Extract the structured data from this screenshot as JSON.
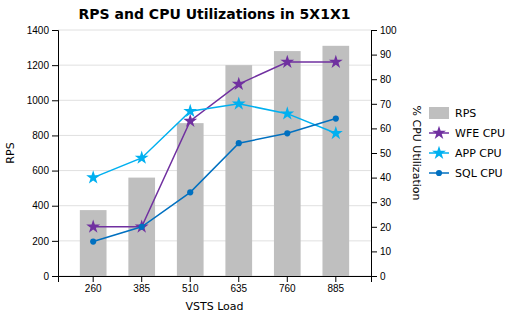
{
  "chart_data": {
    "type": "bar",
    "title": "RPS and CPU Utilizations in 5X1X1",
    "xlabel": "VSTS Load",
    "ylabel": "RPS",
    "y2label": "% CPU Utilization",
    "categories": [
      "260",
      "385",
      "510",
      "635",
      "760",
      "885"
    ],
    "series": [
      {
        "name": "RPS",
        "type": "bar",
        "color": "#bfbfbf",
        "values": [
          375,
          560,
          870,
          1200,
          1280,
          1310
        ]
      },
      {
        "name": "WFE CPU",
        "type": "line",
        "axis": "y2",
        "color": "#7030a0",
        "marker": "star",
        "values": [
          20,
          20,
          63,
          78,
          87,
          87
        ]
      },
      {
        "name": "APP CPU",
        "type": "line",
        "axis": "y2",
        "color": "#00b0f0",
        "marker": "star",
        "values": [
          40,
          48,
          67,
          70,
          66,
          58
        ]
      },
      {
        "name": "SQL CPU",
        "type": "line",
        "axis": "y2",
        "color": "#0070c0",
        "marker": "circle",
        "values": [
          14,
          20,
          34,
          54,
          58,
          64
        ]
      }
    ],
    "ylim": [
      0,
      1400
    ],
    "yticks": [
      0,
      200,
      400,
      600,
      800,
      1000,
      1200,
      1400
    ],
    "y2lim": [
      0,
      100
    ],
    "y2ticks": [
      0,
      10,
      20,
      30,
      40,
      50,
      60,
      70,
      80,
      90,
      100
    ],
    "grid": true,
    "legend": "right"
  }
}
